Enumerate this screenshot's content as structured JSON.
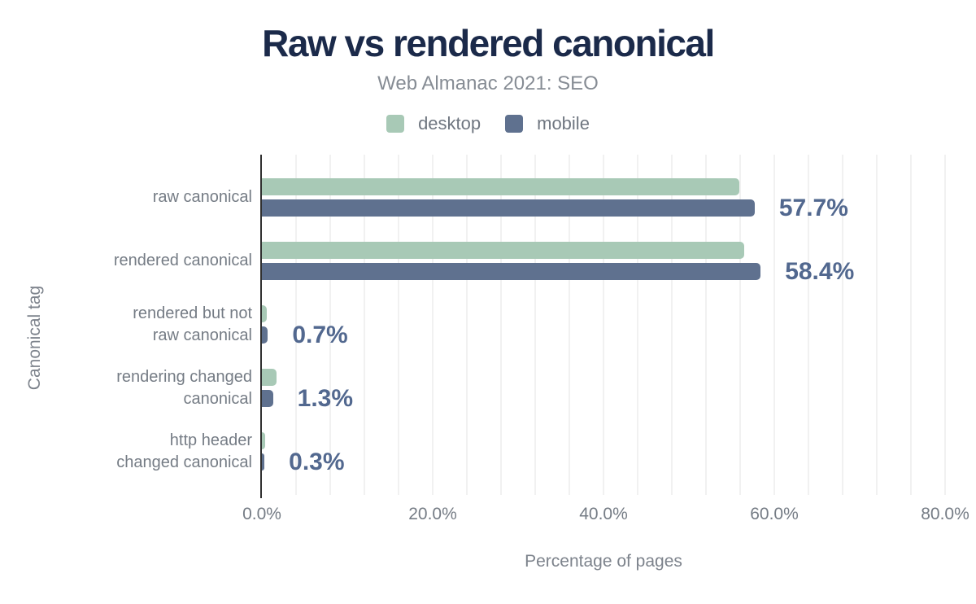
{
  "chart_data": {
    "type": "bar",
    "orientation": "horizontal",
    "title": "Raw vs rendered canonical",
    "subtitle": "Web Almanac 2021: SEO",
    "xlabel": "Percentage of pages",
    "ylabel": "Canonical tag",
    "categories": [
      "raw canonical",
      "rendered canonical",
      "rendered but not\nraw canonical",
      "rendering changed\ncanonical",
      "http header\nchanged canonical"
    ],
    "series": [
      {
        "name": "desktop",
        "color": "#a8c9b6",
        "values": [
          55.9,
          56.5,
          0.6,
          1.7,
          0.4
        ]
      },
      {
        "name": "mobile",
        "color": "#5f718f",
        "values": [
          57.7,
          58.4,
          0.7,
          1.3,
          0.3
        ]
      }
    ],
    "value_labels": {
      "labeled_series": "mobile",
      "texts": [
        "57.7%",
        "58.4%",
        "0.7%",
        "1.3%",
        "0.3%"
      ]
    },
    "x_ticks": [
      {
        "value": 0,
        "label": "0.0%"
      },
      {
        "value": 20,
        "label": "20.0%"
      },
      {
        "value": 40,
        "label": "40.0%"
      },
      {
        "value": 60,
        "label": "60.0%"
      },
      {
        "value": 80,
        "label": "80.0%"
      }
    ],
    "xlim": [
      0,
      80
    ],
    "grid": {
      "on": true,
      "minor_step_percent": 4,
      "color": "#f1f1f1"
    },
    "legend_position": "top",
    "colors": {
      "title": "#1b2a4a",
      "subtitle": "#868c94",
      "axis_text": "#757c85",
      "annotation": "#52688f",
      "axis_line": "#303030",
      "desktop": "#a8c9b6",
      "mobile": "#5f718f"
    }
  }
}
